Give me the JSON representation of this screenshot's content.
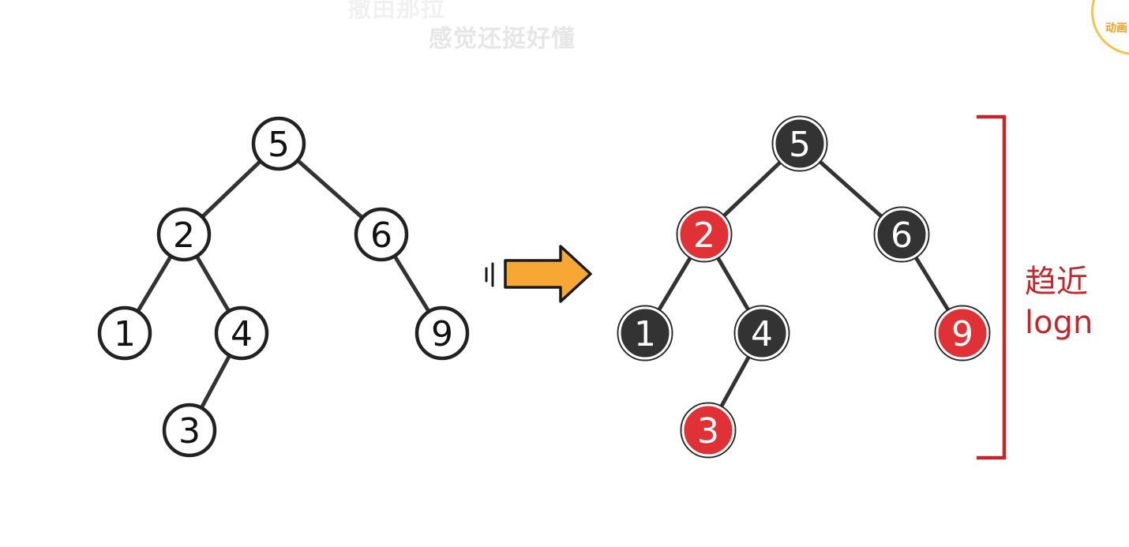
{
  "subtitles": {
    "previous": "撤由那拉",
    "current": "感觉还挺好懂"
  },
  "top_right_text": "",
  "logo": {
    "text": "动画"
  },
  "colors": {
    "edge": "#333333",
    "plain_fill": "#ffffff",
    "plain_stroke": "#222222",
    "black_node": "#333333",
    "red_node": "#e03136",
    "red_text_accent": "#c0282d",
    "arrow": "#f7a733",
    "arrow_stroke": "#1a1a1a"
  },
  "left_tree": {
    "nodes": [
      {
        "id": "n5",
        "label": "5"
      },
      {
        "id": "n2",
        "label": "2"
      },
      {
        "id": "n6",
        "label": "6"
      },
      {
        "id": "n1",
        "label": "1"
      },
      {
        "id": "n4",
        "label": "4"
      },
      {
        "id": "n9",
        "label": "9"
      },
      {
        "id": "n3",
        "label": "3"
      }
    ],
    "edges": [
      [
        "n5",
        "n2"
      ],
      [
        "n5",
        "n6"
      ],
      [
        "n2",
        "n1"
      ],
      [
        "n2",
        "n4"
      ],
      [
        "n6",
        "n9"
      ],
      [
        "n4",
        "n3"
      ]
    ]
  },
  "right_tree": {
    "nodes": [
      {
        "id": "r5",
        "label": "5",
        "color": "black"
      },
      {
        "id": "r2",
        "label": "2",
        "color": "red"
      },
      {
        "id": "r6",
        "label": "6",
        "color": "black"
      },
      {
        "id": "r1",
        "label": "1",
        "color": "black"
      },
      {
        "id": "r4",
        "label": "4",
        "color": "black"
      },
      {
        "id": "r9",
        "label": "9",
        "color": "red"
      },
      {
        "id": "r3",
        "label": "3",
        "color": "red"
      }
    ],
    "edges": [
      [
        "r5",
        "r2"
      ],
      [
        "r5",
        "r6"
      ],
      [
        "r2",
        "r1"
      ],
      [
        "r2",
        "r4"
      ],
      [
        "r6",
        "r9"
      ],
      [
        "r4",
        "r3"
      ]
    ]
  },
  "arrow_icon": "right-arrow-icon",
  "bracket_label": {
    "line1": "趋近",
    "line2": "logn"
  }
}
